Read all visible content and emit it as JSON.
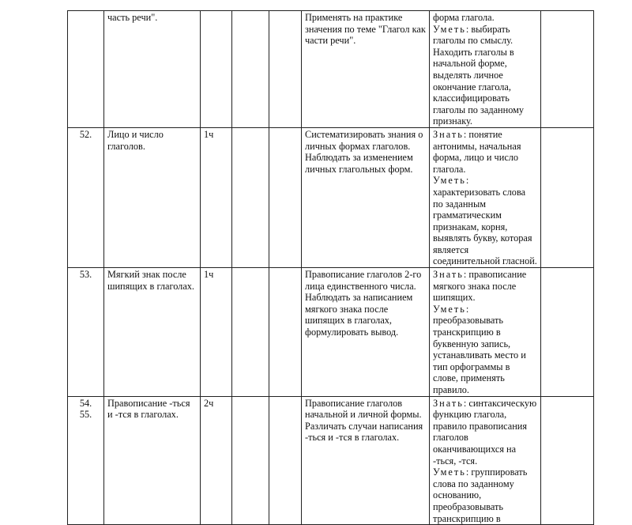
{
  "rows": [
    {
      "num": "",
      "topic": "часть речи\".",
      "hours": "",
      "activity": "Применять на практике значения  по теме \"Глагол как части речи\".",
      "know_label": "",
      "know": "форма глагола.",
      "can_label": "Уметь",
      "can": ": выбирать глаголы по смыслу. Находить глаголы в начальной форме, выделять личное окончание глагола, классифицировать глаголы по заданному признаку."
    },
    {
      "num": "52.",
      "topic": "Лицо и число глаголов.",
      "hours": "1ч",
      "activity": "Систематизировать знания о личных формах глаголов. Наблюдать за изменением личных глагольных форм.",
      "know_label": "Знать",
      "know": ":  понятие антонимы, начальная форма, лицо и число глагола.",
      "can_label": "Уметь",
      "can": ": характеризовать слова по заданным грамматическим признакам,  корня, выявлять букву, которая является соединительной гласной."
    },
    {
      "num": "53.",
      "topic": "Мягкий знак после шипящих в глаголах.",
      "hours": "1ч",
      "activity": "Правописание глаголов 2-го лица единственного числа. Наблюдать за написанием мягкого знака после шипящих в глаголах, формулировать вывод.",
      "know_label": "Знать",
      "know": ":  правописание мягкого знака после шипящих.",
      "can_label": "Уметь",
      "can": ": преобразовывать транскрипцию в буквенную запись, устанавливать место  и тип орфограммы в слове, применять правило."
    },
    {
      "num": "54.\n55.",
      "topic": "Правописание -ться и -тся в глаголах.",
      "hours": "2ч",
      "activity": "Правописание глаголов начальной и личной формы. Различать случаи написания -ться и -тся в глаголах.",
      "know_label": "Знать",
      "know": ":  синтаксическую функцию  глагола, правило правописания глаголов оканчивающихся на -ться, -тся.",
      "can_label": "Уметь",
      "can": ":  группировать слова по заданному основанию, преобразовывать транскрипцию в"
    }
  ]
}
